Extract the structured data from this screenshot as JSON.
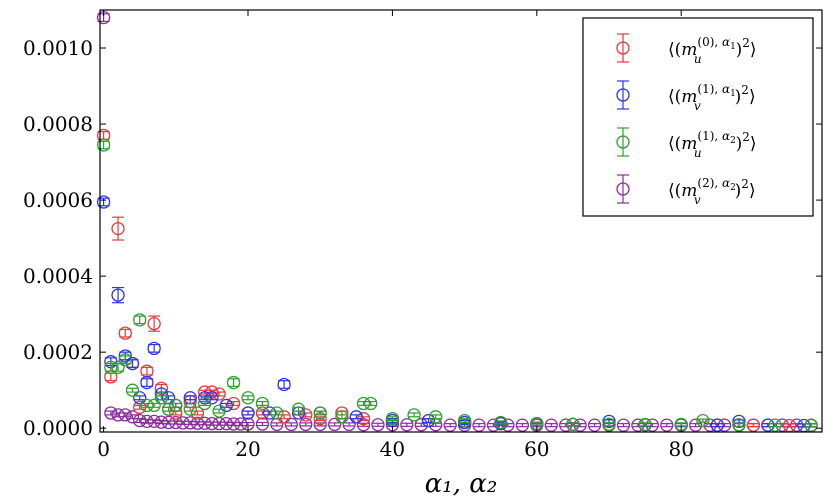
{
  "chart_data": {
    "type": "scatter",
    "title": "",
    "xlabel": "α₁, α₂",
    "ylabel": "",
    "xlim": [
      -0.5,
      99.5
    ],
    "ylim": [
      -1e-05,
      0.0011
    ],
    "x_ticks": [
      0,
      20,
      40,
      60,
      80
    ],
    "x_tick_labels": [
      "0",
      "20",
      "40",
      "60",
      "80"
    ],
    "y_ticks": [
      0.0,
      0.0002,
      0.0004,
      0.0006,
      0.0008,
      0.001
    ],
    "y_tick_labels": [
      "0.0000",
      "0.0002",
      "0.0004",
      "0.0006",
      "0.0008",
      "0.0010"
    ],
    "legend_position": "upper-right",
    "grid": false,
    "series": [
      {
        "name": "⟨(m_u^{(0),α₁})²⟩",
        "color": "#e8383b",
        "marker": "open-circle",
        "points": [
          [
            0,
            0.00077,
            1e-05
          ],
          [
            1,
            0.000135,
            1e-05
          ],
          [
            2,
            0.000525,
            3e-05
          ],
          [
            3,
            0.00025,
            1e-05
          ],
          [
            4,
            0.00017,
            1e-05
          ],
          [
            5,
            5.5e-05,
            5e-06
          ],
          [
            6,
            0.00015,
            1e-05
          ],
          [
            7,
            0.000275,
            2e-05
          ],
          [
            8,
            0.000105,
            1e-05
          ],
          [
            9,
            5e-05,
            5e-06
          ],
          [
            10,
            4e-05,
            5e-06
          ],
          [
            12,
            7e-05,
            5e-06
          ],
          [
            13,
            4e-05,
            5e-06
          ],
          [
            14,
            9.5e-05,
            5e-06
          ],
          [
            15,
            9.5e-05,
            5e-06
          ],
          [
            16,
            9e-05,
            5e-06
          ],
          [
            18,
            6.5e-05,
            5e-06
          ],
          [
            20,
            4e-05,
            5e-06
          ],
          [
            22,
            4e-05,
            5e-06
          ],
          [
            25,
            3e-05,
            5e-06
          ],
          [
            28,
            3.5e-05,
            5e-06
          ],
          [
            30,
            2.5e-05,
            5e-06
          ],
          [
            33,
            4e-05,
            5e-06
          ],
          [
            36,
            2.5e-05,
            5e-06
          ],
          [
            40,
            2e-05,
            5e-06
          ],
          [
            45,
            2e-05,
            5e-06
          ],
          [
            50,
            1.5e-05,
            5e-06
          ],
          [
            55,
            1.2e-05,
            4e-06
          ],
          [
            60,
            1.2e-05,
            4e-06
          ],
          [
            65,
            1e-05,
            4e-06
          ],
          [
            70,
            1e-05,
            4e-06
          ],
          [
            75,
            9e-06,
            4e-06
          ],
          [
            80,
            9e-06,
            4e-06
          ],
          [
            85,
            8e-06,
            4e-06
          ],
          [
            90,
            8e-06,
            4e-06
          ],
          [
            95,
            7e-06,
            4e-06
          ]
        ]
      },
      {
        "name": "⟨(m_v^{(1),α₁})²⟩",
        "color": "#2c35e8",
        "marker": "open-circle",
        "points": [
          [
            0,
            0.000595,
            1e-05
          ],
          [
            1,
            0.000175,
            1e-05
          ],
          [
            2,
            0.00035,
            2e-05
          ],
          [
            3,
            0.00019,
            1e-05
          ],
          [
            4,
            0.00017,
            1e-05
          ],
          [
            5,
            8e-05,
            5e-06
          ],
          [
            6,
            0.00012,
            1e-05
          ],
          [
            7,
            0.00021,
            1e-05
          ],
          [
            8,
            9e-05,
            5e-06
          ],
          [
            9,
            8e-05,
            5e-06
          ],
          [
            10,
            6e-05,
            5e-06
          ],
          [
            12,
            8e-05,
            5e-06
          ],
          [
            14,
            8e-05,
            5e-06
          ],
          [
            15,
            8e-05,
            5e-06
          ],
          [
            17,
            6e-05,
            5e-06
          ],
          [
            20,
            4e-05,
            5e-06
          ],
          [
            23,
            4e-05,
            5e-06
          ],
          [
            25,
            0.000115,
            1e-05
          ],
          [
            27,
            4e-05,
            5e-06
          ],
          [
            30,
            4e-05,
            5e-06
          ],
          [
            35,
            3e-05,
            5e-06
          ],
          [
            40,
            2e-05,
            5e-06
          ],
          [
            45,
            2e-05,
            5e-06
          ],
          [
            50,
            1.5e-05,
            5e-06
          ],
          [
            55,
            1.2e-05,
            4e-06
          ],
          [
            60,
            1.2e-05,
            4e-06
          ],
          [
            65,
            1e-05,
            4e-06
          ],
          [
            70,
            1.8e-05,
            4e-06
          ],
          [
            75,
            9e-06,
            4e-06
          ],
          [
            80,
            9e-06,
            4e-06
          ],
          [
            85,
            8e-06,
            4e-06
          ],
          [
            88,
            1.8e-05,
            4e-06
          ],
          [
            92,
            8e-06,
            4e-06
          ],
          [
            97,
            7e-06,
            4e-06
          ]
        ]
      },
      {
        "name": "⟨(m_u^{(1),α₂})²⟩",
        "color": "#2ea02c",
        "marker": "open-circle",
        "points": [
          [
            0,
            0.000745,
            1e-05
          ],
          [
            1,
            0.00016,
            1e-05
          ],
          [
            2,
            0.00016,
            1e-05
          ],
          [
            3,
            0.00018,
            1e-05
          ],
          [
            4,
            0.0001,
            5e-06
          ],
          [
            5,
            0.000285,
            1e-05
          ],
          [
            6,
            6e-05,
            5e-06
          ],
          [
            7,
            6e-05,
            5e-06
          ],
          [
            8,
            8e-05,
            5e-06
          ],
          [
            9,
            5e-05,
            5e-06
          ],
          [
            10,
            6e-05,
            5e-06
          ],
          [
            12,
            5e-05,
            5e-06
          ],
          [
            14,
            6.5e-05,
            5e-06
          ],
          [
            16,
            4.5e-05,
            5e-06
          ],
          [
            18,
            0.00012,
            1e-05
          ],
          [
            20,
            8e-05,
            5e-06
          ],
          [
            22,
            6.5e-05,
            5e-06
          ],
          [
            24,
            4e-05,
            5e-06
          ],
          [
            27,
            5e-05,
            5e-06
          ],
          [
            30,
            4e-05,
            5e-06
          ],
          [
            33,
            3e-05,
            5e-06
          ],
          [
            36,
            6.5e-05,
            5e-06
          ],
          [
            37,
            6.5e-05,
            5e-06
          ],
          [
            40,
            2.5e-05,
            5e-06
          ],
          [
            43,
            3.5e-05,
            5e-06
          ],
          [
            46,
            3e-05,
            5e-06
          ],
          [
            50,
            2e-05,
            5e-06
          ],
          [
            55,
            1.5e-05,
            4e-06
          ],
          [
            60,
            1.2e-05,
            4e-06
          ],
          [
            65,
            1e-05,
            4e-06
          ],
          [
            70,
            1e-05,
            4e-06
          ],
          [
            75,
            1e-05,
            4e-06
          ],
          [
            80,
            1e-05,
            4e-06
          ],
          [
            83,
            2e-05,
            4e-06
          ],
          [
            88,
            9e-06,
            4e-06
          ],
          [
            93,
            8e-06,
            4e-06
          ],
          [
            98,
            7e-06,
            4e-06
          ]
        ]
      },
      {
        "name": "⟨(m_v^{(2),α₂})²⟩",
        "color": "#8b2c9e",
        "marker": "open-circle",
        "points": [
          [
            0,
            0.00108,
            1e-05
          ],
          [
            1,
            4e-05,
            5e-06
          ],
          [
            2,
            3.5e-05,
            5e-06
          ],
          [
            3,
            3.5e-05,
            5e-06
          ],
          [
            4,
            3e-05,
            5e-06
          ],
          [
            5,
            2e-05,
            5e-06
          ],
          [
            6,
            1.8e-05,
            5e-06
          ],
          [
            7,
            1.8e-05,
            4e-06
          ],
          [
            8,
            1.6e-05,
            4e-06
          ],
          [
            9,
            1.5e-05,
            4e-06
          ],
          [
            10,
            1.5e-05,
            4e-06
          ],
          [
            11,
            1.4e-05,
            4e-06
          ],
          [
            12,
            1.4e-05,
            4e-06
          ],
          [
            13,
            1.3e-05,
            4e-06
          ],
          [
            14,
            1.3e-05,
            4e-06
          ],
          [
            15,
            1.2e-05,
            4e-06
          ],
          [
            16,
            1.2e-05,
            4e-06
          ],
          [
            17,
            1.2e-05,
            4e-06
          ],
          [
            18,
            1.1e-05,
            4e-06
          ],
          [
            19,
            1.1e-05,
            4e-06
          ],
          [
            20,
            1.1e-05,
            4e-06
          ],
          [
            22,
            1.1e-05,
            4e-06
          ],
          [
            24,
            1e-05,
            4e-06
          ],
          [
            26,
            1e-05,
            4e-06
          ],
          [
            28,
            1e-05,
            4e-06
          ],
          [
            30,
            1e-05,
            4e-06
          ],
          [
            32,
            1e-05,
            4e-06
          ],
          [
            34,
            1e-05,
            4e-06
          ],
          [
            36,
            9e-06,
            4e-06
          ],
          [
            38,
            9e-06,
            4e-06
          ],
          [
            40,
            9e-06,
            4e-06
          ],
          [
            42,
            9e-06,
            4e-06
          ],
          [
            44,
            9e-06,
            4e-06
          ],
          [
            46,
            9e-06,
            4e-06
          ],
          [
            48,
            8e-06,
            4e-06
          ],
          [
            50,
            8e-06,
            4e-06
          ],
          [
            52,
            8e-06,
            4e-06
          ],
          [
            54,
            8e-06,
            4e-06
          ],
          [
            56,
            8e-06,
            4e-06
          ],
          [
            58,
            8e-06,
            4e-06
          ],
          [
            60,
            8e-06,
            4e-06
          ],
          [
            62,
            8e-06,
            4e-06
          ],
          [
            64,
            8e-06,
            4e-06
          ],
          [
            66,
            8e-06,
            4e-06
          ],
          [
            68,
            8e-06,
            4e-06
          ],
          [
            70,
            8e-06,
            4e-06
          ],
          [
            72,
            8e-06,
            4e-06
          ],
          [
            74,
            8e-06,
            4e-06
          ],
          [
            76,
            8e-06,
            4e-06
          ],
          [
            78,
            8e-06,
            4e-06
          ],
          [
            80,
            8e-06,
            4e-06
          ],
          [
            82,
            8e-06,
            4e-06
          ],
          [
            84,
            8e-06,
            4e-06
          ],
          [
            86,
            8e-06,
            4e-06
          ],
          [
            88,
            8e-06,
            4e-06
          ],
          [
            90,
            8e-06,
            4e-06
          ],
          [
            92,
            8e-06,
            4e-06
          ],
          [
            94,
            8e-06,
            4e-06
          ],
          [
            96,
            8e-06,
            4e-06
          ],
          [
            98,
            8e-06,
            4e-06
          ]
        ]
      }
    ],
    "legend": [
      {
        "base": "m",
        "sub": "u",
        "sup": "(0), α",
        "supsub": "1"
      },
      {
        "base": "m",
        "sub": "v",
        "sup": "(1), α",
        "supsub": "1"
      },
      {
        "base": "m",
        "sub": "u",
        "sup": "(1), α",
        "supsub": "2"
      },
      {
        "base": "m",
        "sub": "v",
        "sup": "(2), α",
        "supsub": "2"
      }
    ]
  }
}
